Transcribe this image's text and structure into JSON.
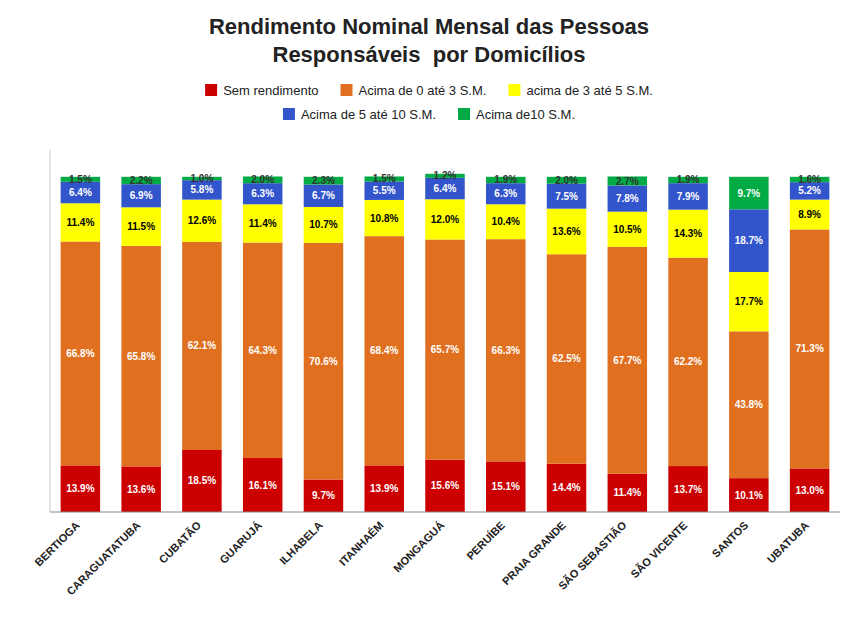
{
  "chart_data": {
    "type": "bar",
    "stacked": true,
    "title": "Rendimento Nominal Mensal das Pessoas",
    "subtitle": "Responsáveis  por Domicílios",
    "categories": [
      "BERTIOGA",
      "CARAGUATATUBA",
      "CUBATÃO",
      "GUARUJÁ",
      "ILHABELA",
      "ITANHAÉM",
      "MONGAGUÁ",
      "PERUÍBE",
      "PRAIA GRANDE",
      "SÃO SEBASTIÃO",
      "SÃO VICENTE",
      "SANTOS",
      "UBATUBA"
    ],
    "series": [
      {
        "name": "Sem rendimento",
        "color": "#cc0000",
        "values": [
          13.9,
          13.6,
          18.5,
          16.1,
          9.7,
          13.9,
          15.6,
          15.1,
          14.4,
          11.4,
          13.7,
          10.1,
          13.0
        ],
        "value_labels": [
          "13.9%",
          "13.6%",
          "18.5%",
          "16.1%",
          "9.7%",
          "13.9%",
          "15.6%",
          "15.1%",
          "14.4%",
          "11.4%",
          "13.7%",
          "10.1%",
          "13.0%"
        ]
      },
      {
        "name": "Acima de 0 até 3 S.M.",
        "color": "#e07020",
        "values": [
          66.8,
          65.8,
          62.1,
          64.3,
          70.6,
          68.4,
          65.7,
          66.3,
          62.5,
          67.7,
          62.2,
          43.8,
          71.3
        ],
        "value_labels": [
          "66.8%",
          "65.8%",
          "62.1%",
          "64.3%",
          "70.6%",
          "68.4%",
          "65.7%",
          "66.3%",
          "62.5%",
          "67.7%",
          "62.2%",
          "43.8%",
          "71.3%"
        ]
      },
      {
        "name": "acima de 3 até 5 S.M.",
        "color": "#ffff00",
        "values": [
          11.4,
          11.5,
          12.6,
          11.4,
          10.7,
          10.8,
          12.0,
          10.4,
          13.6,
          10.5,
          14.3,
          17.7,
          8.9
        ],
        "value_labels": [
          "11.4%",
          "11.5%",
          "12.6%",
          "11.4%",
          "10.7%",
          "10.8%",
          "12.0%",
          "10.4%",
          "13.6%",
          "10.5%",
          "14.3%",
          "17.7%",
          "8.9%"
        ]
      },
      {
        "name": "Acima de 5 até 10 S.M.",
        "color": "#3355cc",
        "values": [
          6.4,
          6.9,
          5.8,
          6.3,
          6.7,
          5.5,
          6.4,
          6.3,
          7.5,
          7.8,
          7.9,
          18.7,
          5.2
        ],
        "value_labels": [
          "6.4%",
          "6.9%",
          "5.8%",
          "6.3%",
          "6.7%",
          "5.5%",
          "6.4%",
          "6.3%",
          "7.5%",
          "7.8%",
          "7.9%",
          "18.7%",
          "5.2%"
        ]
      },
      {
        "name": "Acima de10 S.M.",
        "color": "#00aa44",
        "values": [
          1.5,
          2.2,
          1.0,
          2.0,
          2.3,
          1.5,
          1.2,
          1.9,
          2.0,
          2.7,
          1.9,
          9.7,
          1.6
        ],
        "value_labels": [
          "1.5%",
          "2.2%",
          "1.0%",
          "2.0%",
          "2.3%",
          "1.5%",
          "1.2%",
          "1.9%",
          "2.0%",
          "2.7%",
          "1.9%",
          "9.7%",
          "1.6%"
        ]
      }
    ],
    "ylim": [
      0,
      108
    ],
    "tick_labels": "x",
    "data_labels": true,
    "legend": "top",
    "grid": false
  }
}
